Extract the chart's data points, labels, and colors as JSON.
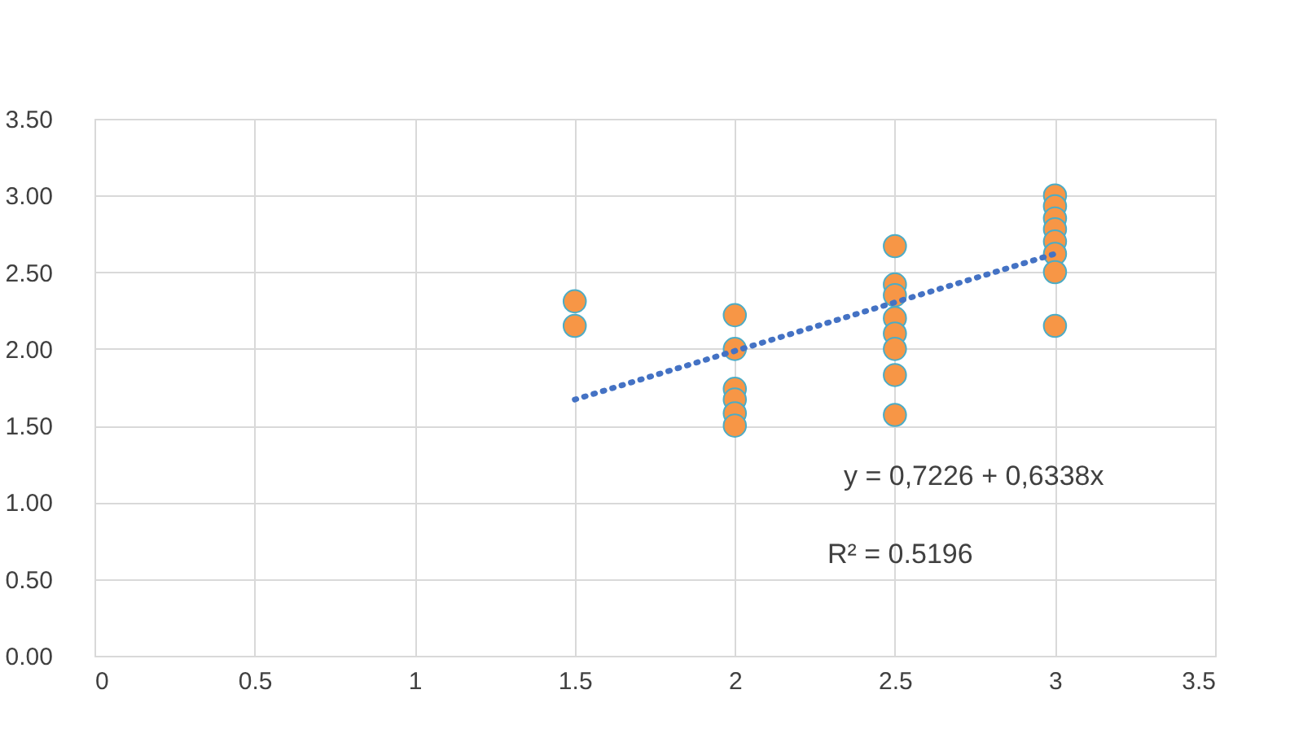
{
  "chart_data": {
    "type": "scatter",
    "series": [
      {
        "color": "#f79646",
        "marker": "circle",
        "x": [
          1.5,
          1.5,
          2,
          2,
          2,
          2,
          2,
          2,
          2.5,
          2.5,
          2.5,
          2.5,
          2.5,
          2.5,
          2.5,
          2.5,
          3,
          3,
          3,
          3,
          3,
          3,
          3,
          3
        ],
        "values": [
          2.31,
          2.15,
          2.22,
          2.0,
          1.74,
          1.67,
          1.58,
          1.5,
          2.67,
          2.42,
          2.35,
          2.2,
          2.1,
          2.0,
          1.83,
          1.57,
          3.0,
          2.93,
          2.85,
          2.78,
          2.7,
          2.62,
          2.5,
          2.15
        ]
      },
      {
        "type": "line",
        "color": "#4472c4",
        "line_style": "dotted",
        "marker": "none",
        "x": [
          1.5,
          3
        ],
        "values": [
          1.67,
          2.62
        ]
      }
    ],
    "annotations": [
      "y = 0,7226 + 0,6338x",
      "R² = 0.5196"
    ],
    "xlim": [
      0,
      3.5
    ],
    "xticks": [
      0,
      0.5,
      1,
      1.5,
      2,
      2.5,
      3,
      3.5
    ],
    "ylim": [
      0,
      3.5
    ],
    "yticks": [
      {
        "value": 0,
        "label": "0.00"
      },
      {
        "value": 0.5,
        "label": "0.50"
      },
      {
        "value": 1,
        "label": "1.00"
      },
      {
        "value": 1.5,
        "label": "1.50"
      },
      {
        "value": 2,
        "label": "2.00"
      },
      {
        "value": 2.5,
        "label": "2.50"
      },
      {
        "value": 3,
        "label": "3.00"
      },
      {
        "value": 3.5,
        "label": "3.50"
      }
    ],
    "grid": true
  }
}
